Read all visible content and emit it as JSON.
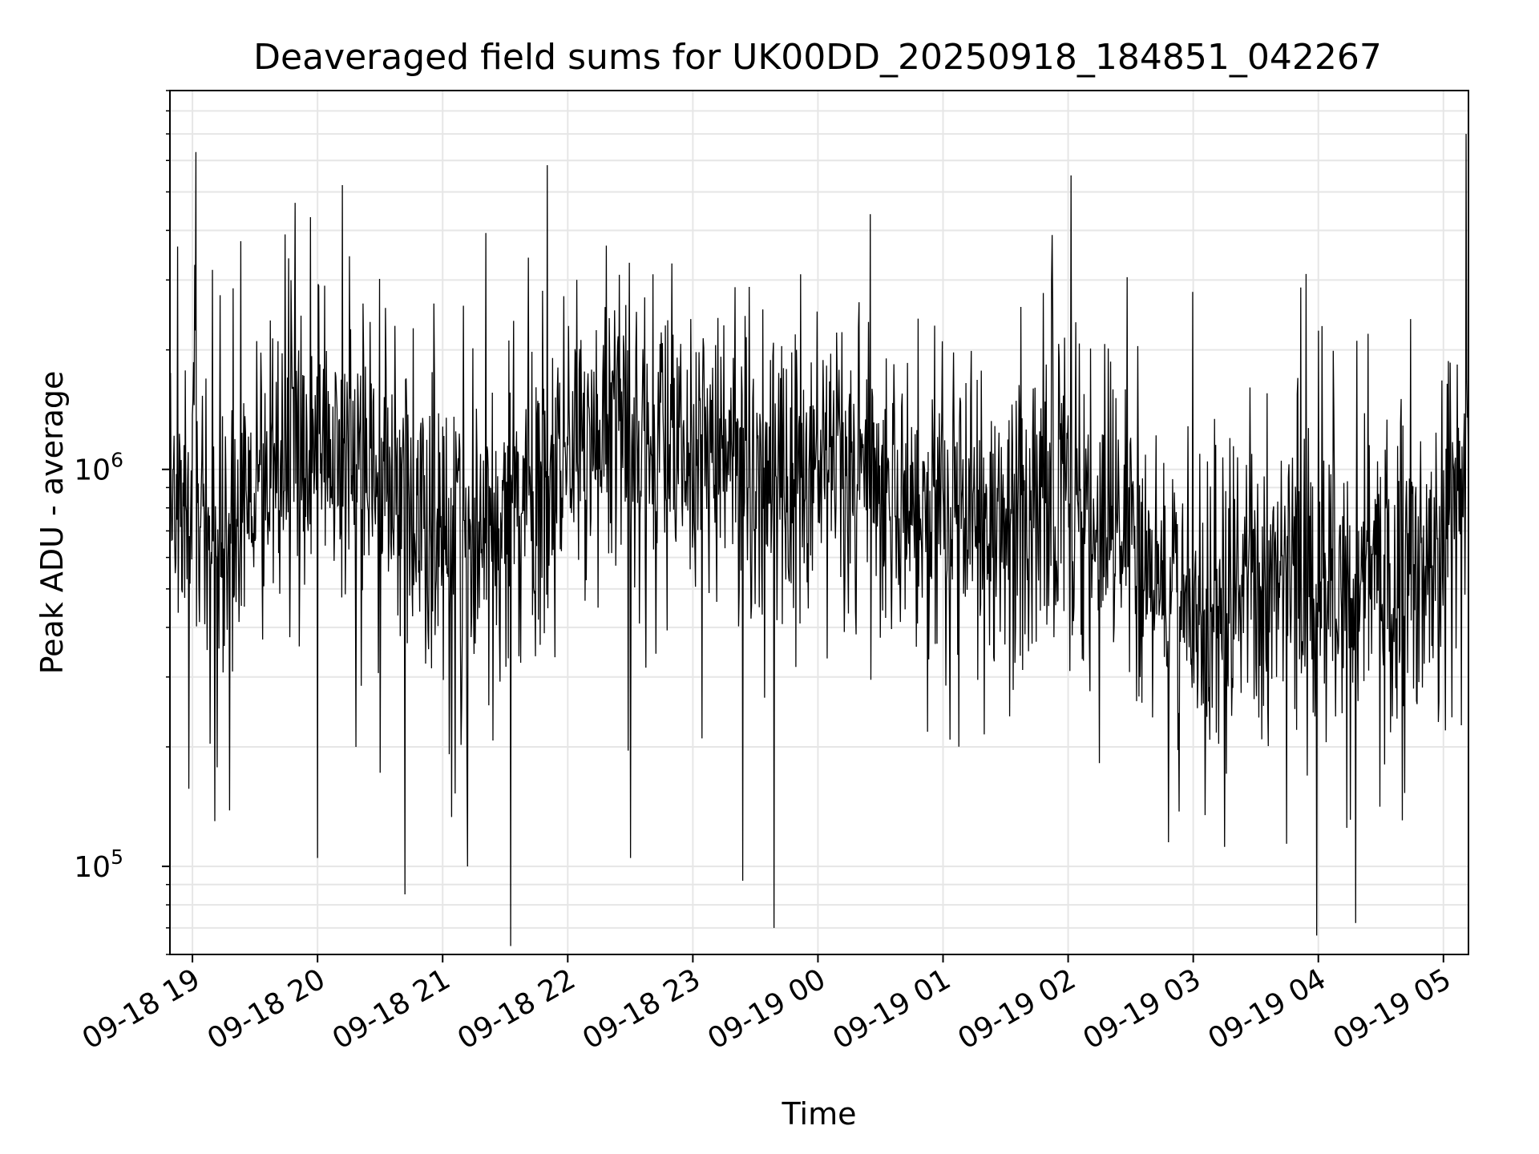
{
  "chart_data": {
    "type": "line",
    "title": "Deaveraged field sums for UK00DD_20250918_184851_042267",
    "xlabel": "Time",
    "ylabel": "Peak ADU - average",
    "yscale": "log",
    "ylim": [
      60000,
      9000000
    ],
    "xlim_hours": [
      -0.18,
      10.2
    ],
    "x_ticks": [
      {
        "hour": 0,
        "label": "09-18 19"
      },
      {
        "hour": 1,
        "label": "09-18 20"
      },
      {
        "hour": 2,
        "label": "09-18 21"
      },
      {
        "hour": 3,
        "label": "09-18 22"
      },
      {
        "hour": 4,
        "label": "09-18 23"
      },
      {
        "hour": 5,
        "label": "09-19 00"
      },
      {
        "hour": 6,
        "label": "09-19 01"
      },
      {
        "hour": 7,
        "label": "09-19 02"
      },
      {
        "hour": 8,
        "label": "09-19 03"
      },
      {
        "hour": 9,
        "label": "09-19 04"
      },
      {
        "hour": 10,
        "label": "09-19 05"
      }
    ],
    "y_ticks": [
      {
        "value": 100000,
        "base": "10",
        "exp": "5"
      },
      {
        "value": 1000000,
        "base": "10",
        "exp": "6"
      }
    ],
    "grid": true,
    "series_color": "#000000",
    "grid_color": "#e6e6e6",
    "trend_profile": [
      {
        "hour": -0.18,
        "level": 900000
      },
      {
        "hour": 0.3,
        "level": 750000
      },
      {
        "hour": 1.0,
        "level": 1300000
      },
      {
        "hour": 1.5,
        "level": 900000
      },
      {
        "hour": 2.2,
        "level": 650000
      },
      {
        "hour": 3.3,
        "level": 1200000
      },
      {
        "hour": 4.0,
        "level": 1250000
      },
      {
        "hour": 4.6,
        "level": 1000000
      },
      {
        "hour": 5.5,
        "level": 950000
      },
      {
        "hour": 6.3,
        "level": 700000
      },
      {
        "hour": 7.0,
        "level": 850000
      },
      {
        "hour": 8.0,
        "level": 450000
      },
      {
        "hour": 9.0,
        "level": 550000
      },
      {
        "hour": 9.8,
        "level": 500000
      },
      {
        "hour": 10.2,
        "level": 1100000
      }
    ],
    "notable_points": [
      {
        "hour": 0.03,
        "value": 6300000
      },
      {
        "hour": 0.18,
        "value": 130000
      },
      {
        "hour": 1.0,
        "value": 105000
      },
      {
        "hour": 1.2,
        "value": 5200000
      },
      {
        "hour": 1.7,
        "value": 85000
      },
      {
        "hour": 2.2,
        "value": 100000
      },
      {
        "hour": 3.5,
        "value": 105000
      },
      {
        "hour": 4.4,
        "value": 92000
      },
      {
        "hour": 4.65,
        "value": 70000
      },
      {
        "hour": 7.8,
        "value": 115000
      },
      {
        "hour": 8.25,
        "value": 112000
      },
      {
        "hour": 9.3,
        "value": 72000
      },
      {
        "hour": 10.18,
        "value": 7000000
      }
    ],
    "sample_count": 2200
  }
}
